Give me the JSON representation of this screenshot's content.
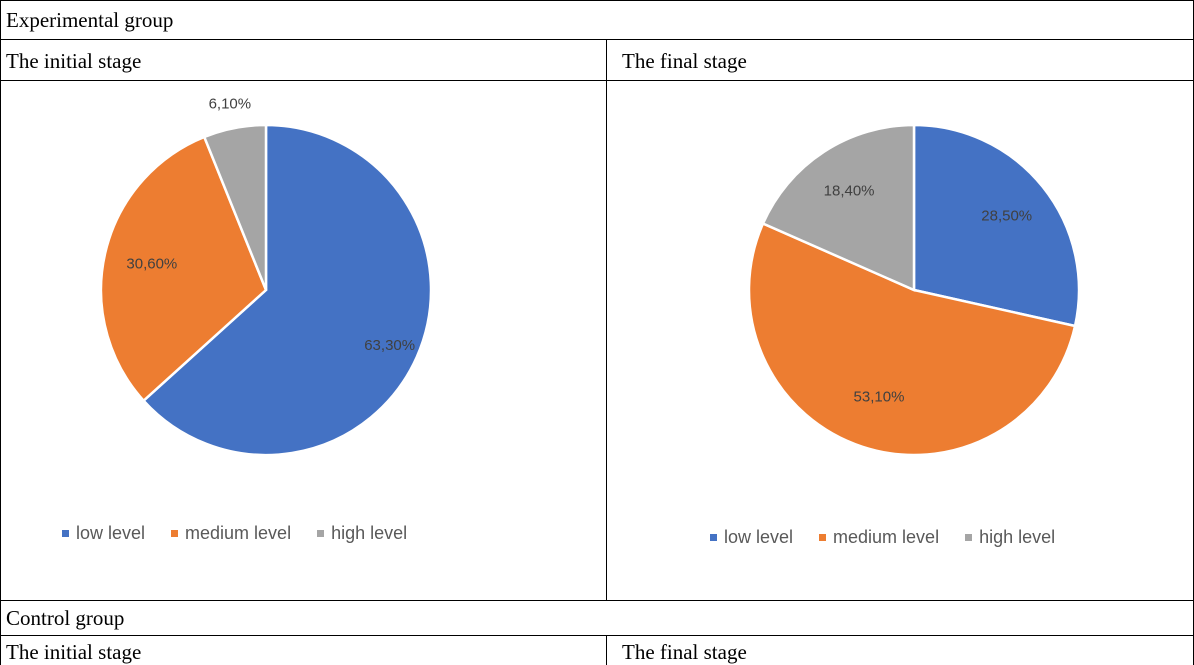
{
  "table": {
    "group1_title": "Experimental group",
    "group2_title": "Control group",
    "initial_stage": "The initial stage",
    "final_stage": "The final stage"
  },
  "colors": {
    "low": "#4472C4",
    "medium": "#ED7D31",
    "high": "#A5A5A5"
  },
  "chart_data": [
    {
      "type": "pie",
      "title": "The initial stage",
      "categories": [
        "low level",
        "medium level",
        "high level"
      ],
      "values": [
        63.3,
        30.6,
        6.1
      ],
      "labels": [
        "63,30%",
        "30,60%",
        "6,10%"
      ],
      "legend": "bottom"
    },
    {
      "type": "pie",
      "title": "The final stage",
      "categories": [
        "low level",
        "medium level",
        "high level"
      ],
      "values": [
        28.5,
        53.1,
        18.4
      ],
      "labels": [
        "28,50%",
        "53,10%",
        "18,40%"
      ],
      "legend": "bottom"
    }
  ]
}
